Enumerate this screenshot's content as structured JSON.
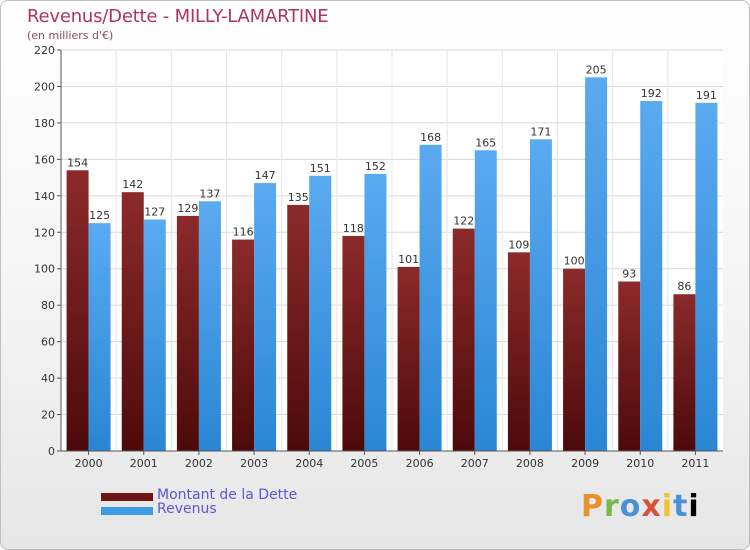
{
  "header": {
    "title": "Revenus/Dette - MILLY-LAMARTINE",
    "subtitle": "(en milliers d'€)"
  },
  "legend": {
    "items": [
      {
        "label": "Montant de la Dette",
        "color": "#7a1f1f"
      },
      {
        "label": "Revenus",
        "color": "#3d9be5"
      }
    ]
  },
  "logo": {
    "text": "Proxiti"
  },
  "chart_data": {
    "type": "bar",
    "title": "Revenus/Dette - MILLY-LAMARTINE",
    "subtitle": "(en milliers d'€)",
    "xlabel": "",
    "ylabel": "",
    "ylim": [
      0,
      220
    ],
    "yticks": [
      0,
      20,
      40,
      60,
      80,
      100,
      120,
      140,
      160,
      180,
      200,
      220
    ],
    "categories": [
      "2000",
      "2001",
      "2002",
      "2003",
      "2004",
      "2005",
      "2006",
      "2007",
      "2008",
      "2009",
      "2010",
      "2011"
    ],
    "series": [
      {
        "name": "Montant de la Dette",
        "color": "#7a1f1f",
        "values": [
          154,
          142,
          129,
          116,
          135,
          118,
          101,
          122,
          109,
          100,
          93,
          86
        ]
      },
      {
        "name": "Revenus",
        "color": "#3d9be5",
        "values": [
          125,
          127,
          137,
          147,
          151,
          152,
          168,
          165,
          171,
          205,
          192,
          191
        ]
      }
    ],
    "grid": true,
    "legend_position": "bottom-left"
  }
}
